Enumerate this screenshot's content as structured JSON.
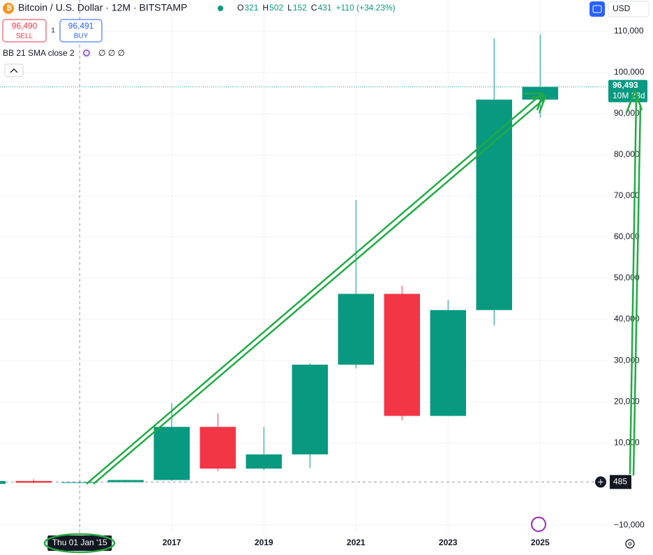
{
  "chart_data": {
    "type": "candlestick",
    "title": "Bitcoin / U.S. Dollar · 12M · BITSTAMP",
    "ohlc": [
      {
        "key": "O",
        "value": 321
      },
      {
        "key": "H",
        "value": 502
      },
      {
        "key": "L",
        "value": 152
      },
      {
        "key": "C",
        "value": 431
      }
    ],
    "change": "+110 (+34.23%)",
    "sell": {
      "value": 96490,
      "label": "96,490",
      "text": "SELL"
    },
    "buy": {
      "value": 96491,
      "label": "96,491",
      "text": "BUY"
    },
    "spread": "1",
    "indicator": "BB 21 SMA close 2",
    "indicator_values": "∅ ∅ ∅",
    "currency": "USD",
    "x": [
      2013,
      2014,
      2015,
      2016,
      2017,
      2018,
      2019,
      2020,
      2021,
      2022,
      2023,
      2024,
      2025
    ],
    "open": [
      13.5,
      732,
      321,
      431,
      966,
      13880,
      3742,
      7195,
      28990,
      46200,
      16540,
      42260,
      93400
    ],
    "high": [
      1163,
      1165,
      502,
      979,
      19666,
      17178,
      13880,
      29300,
      69000,
      48190,
      44700,
      108300,
      109300
    ],
    "low": [
      13,
      152,
      152,
      350,
      752,
      3122,
      3350,
      3850,
      28130,
      15476,
      16490,
      38500,
      89000
    ],
    "close": [
      732,
      320,
      431,
      966,
      13880,
      3742,
      7195,
      28990,
      46200,
      16540,
      42260,
      93400,
      96493
    ],
    "up_color": "#089981",
    "down_color": "#f23645",
    "xlim": [
      2013.27,
      2026.45
    ],
    "xticks": [
      2017,
      2019,
      2021,
      2023,
      2025
    ],
    "ylim": [
      -12000,
      117600
    ],
    "yticks": [
      {
        "value": 110000,
        "label": "110,000"
      },
      {
        "value": 100000,
        "label": "100,000"
      },
      {
        "value": 90000,
        "label": "90,000"
      },
      {
        "value": 80000,
        "label": "80,000"
      },
      {
        "value": 70000,
        "label": "70,000"
      },
      {
        "value": 60000,
        "label": "60,000"
      },
      {
        "value": 50000,
        "label": "50,000"
      },
      {
        "value": 40000,
        "label": "40,000"
      },
      {
        "value": 30000,
        "label": "30,000"
      },
      {
        "value": 20000,
        "label": "20,000"
      },
      {
        "value": 10000,
        "label": "10,000"
      },
      {
        "value": -10000,
        "label": "−10,000"
      }
    ],
    "grid": true,
    "current_price": {
      "value": 96493,
      "label": "96,493"
    },
    "countdown": "10M 23d",
    "crosshair": {
      "x": 2015,
      "x_label": "Thu 01 Jan '15",
      "y": 485
    }
  }
}
